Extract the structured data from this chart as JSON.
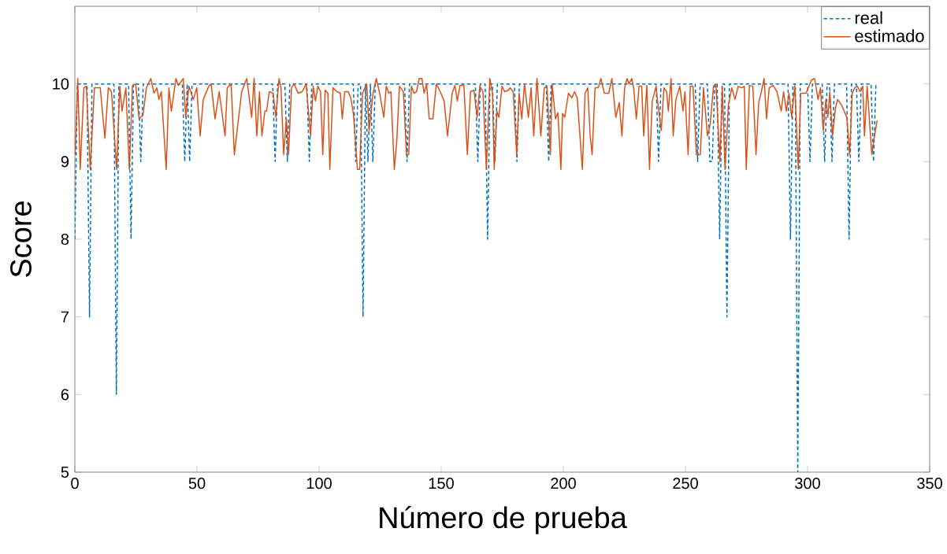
{
  "chart_data": {
    "type": "line",
    "xlabel": "Número de prueba",
    "ylabel": "Score",
    "xlim": [
      0,
      350
    ],
    "ylim": [
      5,
      11
    ],
    "xticks": [
      0,
      50,
      100,
      150,
      200,
      250,
      300,
      350
    ],
    "yticks": [
      5,
      6,
      7,
      8,
      9,
      10
    ],
    "grid": false,
    "legend": "top right",
    "series": [
      {
        "name": "real",
        "color": "#0072bd",
        "line_style": "dashed",
        "x": [
          0,
          1,
          5,
          6,
          7,
          16,
          17,
          18,
          22,
          23,
          24,
          26,
          27,
          28,
          44,
          45,
          46,
          47,
          48,
          81,
          82,
          83,
          86,
          87,
          88,
          95,
          96,
          97,
          114,
          115,
          116,
          117,
          118,
          119,
          120,
          121,
          122,
          123,
          135,
          136,
          137,
          164,
          165,
          166,
          168,
          169,
          170,
          171,
          172,
          173,
          180,
          181,
          182,
          193,
          194,
          195,
          238,
          239,
          240,
          254,
          255,
          256,
          259,
          260,
          261,
          262,
          263,
          264,
          265,
          266,
          267,
          268,
          292,
          293,
          294,
          295,
          296,
          297,
          300,
          301,
          302,
          306,
          307,
          308,
          309,
          310,
          311,
          316,
          317,
          318,
          320,
          321,
          322,
          326,
          327,
          328
        ],
        "values": [
          8,
          10,
          10,
          7,
          10,
          10,
          6,
          10,
          10,
          8,
          10,
          10,
          9,
          10,
          10,
          9,
          10,
          9,
          10,
          10,
          9,
          10,
          10,
          9,
          10,
          10,
          9,
          10,
          10,
          9,
          10,
          10,
          7,
          10,
          9,
          10,
          9,
          10,
          10,
          9,
          10,
          10,
          9,
          10,
          10,
          8,
          10,
          10,
          9,
          10,
          10,
          9,
          10,
          10,
          9,
          10,
          10,
          9,
          10,
          10,
          9,
          10,
          10,
          9,
          9,
          10,
          10,
          8,
          10,
          10,
          7,
          10,
          10,
          8,
          10,
          10,
          5,
          10,
          10,
          9,
          10,
          10,
          9,
          10,
          10,
          9,
          10,
          10,
          8,
          10,
          10,
          9,
          10,
          10,
          9,
          10
        ]
      },
      {
        "name": "estimado",
        "color": "#d95319",
        "line_style": "solid",
        "x": [
          0.1,
          1.2,
          2.2,
          3.7,
          4.7,
          6.3,
          8.0,
          10.4,
          12.3,
          13.7,
          15.0,
          17.1,
          18.4,
          19.3,
          20.9,
          22.3,
          23.6,
          24.9,
          26.3,
          27.9,
          29.3,
          31.1,
          32.4,
          33.6,
          34.4,
          35.4,
          37.4,
          38.5,
          39.5,
          41.4,
          42.4,
          44.4,
          45.4,
          46.7,
          48.5,
          49.9,
          51.3,
          52.6,
          54.8,
          55.8,
          57.4,
          59.1,
          61.5,
          62.4,
          64.0,
          65.3,
          68.3,
          70.4,
          72.4,
          73.4,
          74.5,
          75.6,
          76.6,
          77.8,
          78.5,
          79.6,
          81.2,
          82.3,
          83.6,
          84.4,
          85.5,
          86.6,
          87.5,
          88.7,
          89.8,
          91.4,
          93.1,
          94.7,
          96.5,
          97.6,
          98.5,
          99.5,
          100.6,
          101.5,
          102.5,
          103.6,
          104.4,
          105.7,
          107.3,
          108.7,
          109.5,
          110.5,
          111.9,
          113.0,
          114.1,
          115.7,
          116.6,
          117.8,
          119.5,
          120.5,
          122.1,
          123.4,
          124.8,
          126.5,
          127.5,
          128.6,
          129.4,
          130.8,
          131.8,
          132.9,
          134.5,
          135.8,
          136.7,
          137.8,
          138.9,
          139.9,
          141.0,
          142.1,
          143.0,
          144.0,
          145.1,
          146.6,
          148.0,
          149.6,
          151.2,
          152.6,
          154.5,
          155.6,
          156.6,
          157.7,
          159.3,
          160.7,
          162.0,
          163.4,
          164.7,
          165.8,
          167.1,
          168.5,
          169.9,
          171.0,
          171.7,
          172.8,
          173.6,
          174.9,
          176.0,
          177.6,
          178.2,
          179.5,
          180.9,
          181.9,
          183.0,
          184.1,
          185.7,
          186.8,
          187.9,
          189.2,
          190.8,
          192.2,
          193.3,
          194.7,
          195.4,
          196.8,
          197.8,
          199.0,
          199.7,
          200.6,
          202.1,
          203.5,
          204.6,
          205.7,
          207.8,
          208.9,
          210.0,
          211.0,
          211.8,
          213.0,
          214.3,
          215.4,
          216.8,
          218.6,
          219.9,
          221.5,
          222.9,
          224.0,
          225.1,
          226.1,
          226.9,
          228.0,
          228.8,
          229.9,
          231.0,
          232.1,
          232.9,
          234.2,
          235.3,
          236.4,
          238.0,
          238.5,
          240.1,
          241.2,
          242.3,
          243.0,
          244.1,
          245.0,
          246.1,
          247.7,
          249.0,
          249.8,
          251.1,
          252.0,
          253.1,
          254.5,
          256.1,
          257.4,
          259.0,
          260.1,
          261.5,
          262.5,
          264.1,
          265.1,
          266.2,
          267.6,
          269.0,
          270.3,
          271.6,
          273.0,
          274.1,
          274.9,
          276.2,
          277.6,
          278.9,
          280.0,
          281.1,
          282.2,
          283.2,
          284.3,
          285.9,
          287.5,
          289.2,
          290.2,
          291.3,
          292.4,
          293.5,
          294.8,
          296.2,
          297.2,
          299.4,
          301.6,
          302.9,
          304.3,
          305.3,
          306.4,
          307.5,
          308.3,
          309.1,
          310.2,
          311.5,
          312.3,
          313.9,
          316.1,
          317.2,
          318.3,
          319.3,
          320.4,
          321.5,
          322.6,
          323.3,
          324.4,
          326.3,
          327.4,
          328.5
        ],
        "values": [
          9.09,
          10.07,
          8.9,
          9.95,
          9.97,
          8.9,
          9.95,
          9.95,
          9.3,
          9.95,
          9.9,
          8.9,
          9.97,
          9.65,
          9.95,
          8.9,
          9.98,
          10,
          9.55,
          9.6,
          9.95,
          10.07,
          9.88,
          9.95,
          9.8,
          9.9,
          8.9,
          9.95,
          9.65,
          10.07,
          9.98,
          10.07,
          9.57,
          9.97,
          9.8,
          9.95,
          9.33,
          9.8,
          9.97,
          10,
          9.55,
          9.9,
          9.33,
          9.95,
          10,
          9.09,
          9.9,
          10.07,
          9.57,
          10.07,
          9.33,
          9.9,
          9.33,
          9.65,
          9.65,
          9.9,
          9.88,
          9.57,
          10.07,
          9.95,
          9.09,
          9.55,
          9.09,
          9.95,
          10,
          9.88,
          9.9,
          10,
          9.33,
          9.97,
          9.78,
          9.97,
          9.9,
          9.09,
          9.92,
          9.88,
          8.9,
          9.95,
          9.9,
          9.88,
          9.55,
          9.9,
          9.9,
          9.82,
          9.6,
          8.9,
          8.9,
          9.88,
          10,
          9.4,
          9.88,
          10.07,
          9.88,
          9.57,
          9.97,
          9.88,
          9.9,
          8.9,
          9.26,
          9.97,
          9.9,
          9.09,
          9.09,
          9.97,
          9.88,
          9.9,
          10.07,
          10.07,
          9.88,
          10,
          9.55,
          9.55,
          10,
          9.9,
          9.78,
          9.33,
          9.88,
          9.98,
          9.78,
          9.98,
          9.98,
          9.09,
          9.9,
          9.92,
          9.57,
          9.97,
          9.9,
          8.9,
          10.07,
          9.88,
          8.9,
          9.65,
          9.57,
          9.97,
          9.9,
          9.92,
          9.95,
          9.9,
          9.09,
          9.88,
          9.55,
          10,
          9.57,
          9.95,
          9.33,
          10.07,
          9.33,
          9.95,
          9.97,
          9.09,
          10,
          9.55,
          9.63,
          8.9,
          9.62,
          9.57,
          9.88,
          9.82,
          9.9,
          9.82,
          8.9,
          9.88,
          9.95,
          9.33,
          9.09,
          9.95,
          9.95,
          10.07,
          9.88,
          9.88,
          10.07,
          9.57,
          9.76,
          9.33,
          9.95,
          10.07,
          10,
          10.07,
          9.95,
          9.55,
          9.97,
          9.97,
          9.33,
          9.98,
          8.9,
          9.78,
          9.97,
          9.8,
          9.4,
          9.95,
          9.9,
          9.65,
          10.07,
          9.33,
          9.8,
          9.97,
          9.65,
          9.9,
          9.09,
          9.97,
          9.97,
          9.09,
          9.09,
          9.95,
          9.33,
          9.47,
          9.97,
          10,
          9.0,
          9.97,
          8.9,
          9.73,
          9.95,
          9.8,
          9.97,
          9.95,
          9.97,
          8.9,
          9.98,
          9.97,
          9.09,
          9.76,
          9.9,
          10.07,
          9.55,
          9.95,
          9.98,
          9.9,
          9.65,
          9.9,
          9.65,
          9.88,
          9.57,
          9.98,
          8.9,
          9.88,
          9.88,
          10.05,
          10.07,
          9.8,
          9.95,
          9.4,
          9.8,
          9.57,
          9.9,
          9.33,
          9.7,
          9.8,
          9.73,
          9.57,
          9.09,
          9.88,
          9.95,
          9.97,
          9.9,
          9.97,
          9.33,
          9.97,
          9.09,
          9.33,
          9.53
        ]
      }
    ]
  }
}
